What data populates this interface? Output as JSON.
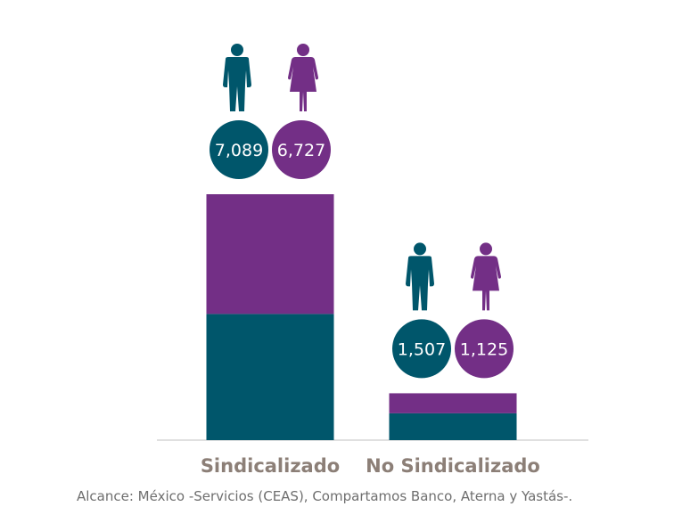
{
  "chart_data": {
    "type": "bar",
    "stacked": true,
    "categories": [
      "Sindicalizado",
      "No Sindicalizado"
    ],
    "series": [
      {
        "name": "",
        "icon": "man-icon",
        "color": "#00566b",
        "values": [
          7089,
          1507
        ]
      },
      {
        "name": "",
        "icon": "woman-icon",
        "color": "#732f86",
        "values": [
          6727,
          1125
        ]
      }
    ],
    "value_labels": [
      [
        "7,089",
        "6,727"
      ],
      [
        "1,507",
        "1,125"
      ]
    ],
    "title": "",
    "xlabel": "",
    "ylabel": "",
    "grid": false,
    "legend": "none"
  },
  "footnote": "Alcance: México -Servicios (CEAS), Compartamos Banco, Aterna y Yastás-."
}
